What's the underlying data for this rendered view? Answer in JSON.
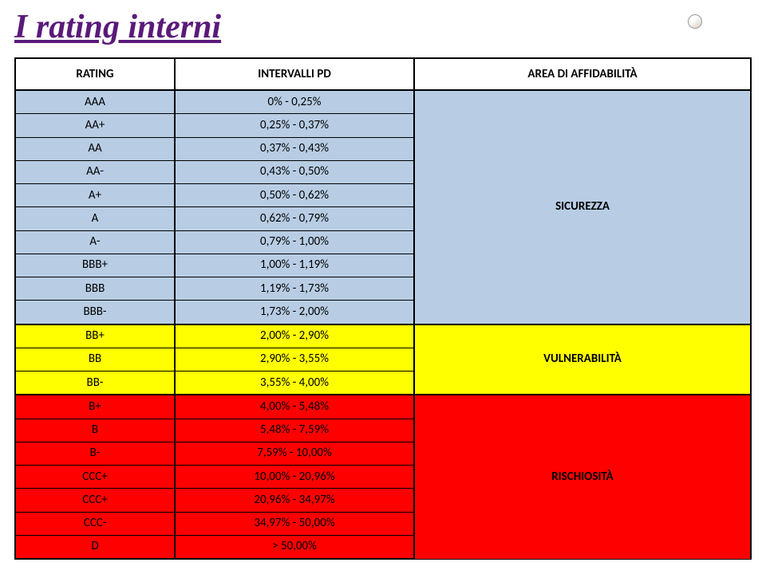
{
  "title": "I rating interni",
  "title_color": "#5a1a7a",
  "columns": {
    "rating": "RATING",
    "pd": "INTERVALLI PD",
    "area": "AREA DI AFFIDABILITÀ"
  },
  "areas": [
    {
      "label": "SICUREZZA",
      "bg": "#b8cde4",
      "fg": "#000000",
      "span": 10
    },
    {
      "label": "VULNERABILITÀ",
      "bg": "#ffff00",
      "fg": "#000000",
      "span": 3
    },
    {
      "label": "RISCHIOSITÀ",
      "bg": "#ff0000",
      "fg": "#000000",
      "span": 7
    }
  ],
  "rows": [
    {
      "rating": "AAA",
      "pd": "0% - 0,25%",
      "area": 0
    },
    {
      "rating": "AA+",
      "pd": "0,25% - 0,37%",
      "area": 0
    },
    {
      "rating": "AA",
      "pd": "0,37% - 0,43%",
      "area": 0
    },
    {
      "rating": "AA-",
      "pd": "0,43% - 0,50%",
      "area": 0
    },
    {
      "rating": "A+",
      "pd": "0,50% - 0,62%",
      "area": 0
    },
    {
      "rating": "A",
      "pd": "0,62% - 0,79%",
      "area": 0
    },
    {
      "rating": "A-",
      "pd": "0,79% - 1,00%",
      "area": 0
    },
    {
      "rating": "BBB+",
      "pd": "1,00% - 1,19%",
      "area": 0
    },
    {
      "rating": "BBB",
      "pd": "1,19% - 1,73%",
      "area": 0
    },
    {
      "rating": "BBB-",
      "pd": "1,73% - 2,00%",
      "area": 0
    },
    {
      "rating": "BB+",
      "pd": "2,00% - 2,90%",
      "area": 1
    },
    {
      "rating": "BB",
      "pd": "2,90% - 3,55%",
      "area": 1
    },
    {
      "rating": "BB-",
      "pd": "3,55% - 4,00%",
      "area": 1
    },
    {
      "rating": "B+",
      "pd": "4,00% - 5,48%",
      "area": 2
    },
    {
      "rating": "B",
      "pd": "5,48% - 7,59%",
      "area": 2
    },
    {
      "rating": "B-",
      "pd": "7,59% - 10,00%",
      "area": 2
    },
    {
      "rating": "CCC+",
      "pd": "10,00% - 20,96%",
      "area": 2
    },
    {
      "rating": "CCC+",
      "pd": "20,96% - 34,97%",
      "area": 2
    },
    {
      "rating": "CCC-",
      "pd": "34,97% - 50,00%",
      "area": 2
    },
    {
      "rating": "D",
      "pd": "> 50,00%",
      "area": 2
    }
  ],
  "row_border_color": "#000000",
  "page_bg": "#ffffff"
}
